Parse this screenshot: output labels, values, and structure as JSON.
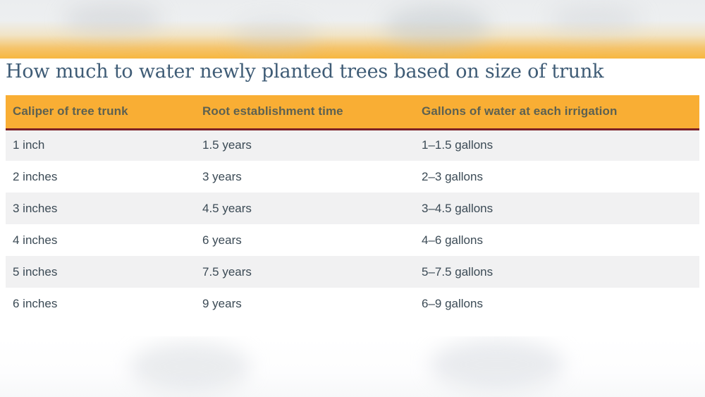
{
  "title": "How much to water newly planted trees based on size of trunk",
  "chart_data": {
    "type": "table",
    "title": "How much to water newly planted trees based on size of trunk",
    "columns": [
      "Caliper of tree trunk",
      "Root establishment time",
      "Gallons of water at each irrigation"
    ],
    "rows": [
      [
        "1 inch",
        "1.5 years",
        "1–1.5 gallons"
      ],
      [
        "2 inches",
        "3 years",
        "2–3 gallons"
      ],
      [
        "3 inches",
        "4.5 years",
        "3–4.5 gallons"
      ],
      [
        "4 inches",
        "6 years",
        "4–6 gallons"
      ],
      [
        "5 inches",
        "7.5 years",
        "5–7.5 gallons"
      ],
      [
        "6 inches",
        "9 years",
        "6–9 gallons"
      ]
    ]
  },
  "colors": {
    "header_bg": "#f9ae34",
    "header_text": "#5d6151",
    "divider_maroon": "#7b2026",
    "row_alt_bg": "#f1f1f2",
    "row_bg": "#ffffff",
    "cell_text": "#3b4a55",
    "title_text": "#3f5c76",
    "top_band_orange": "#f7b740",
    "top_band_gray": "#ebedef"
  }
}
